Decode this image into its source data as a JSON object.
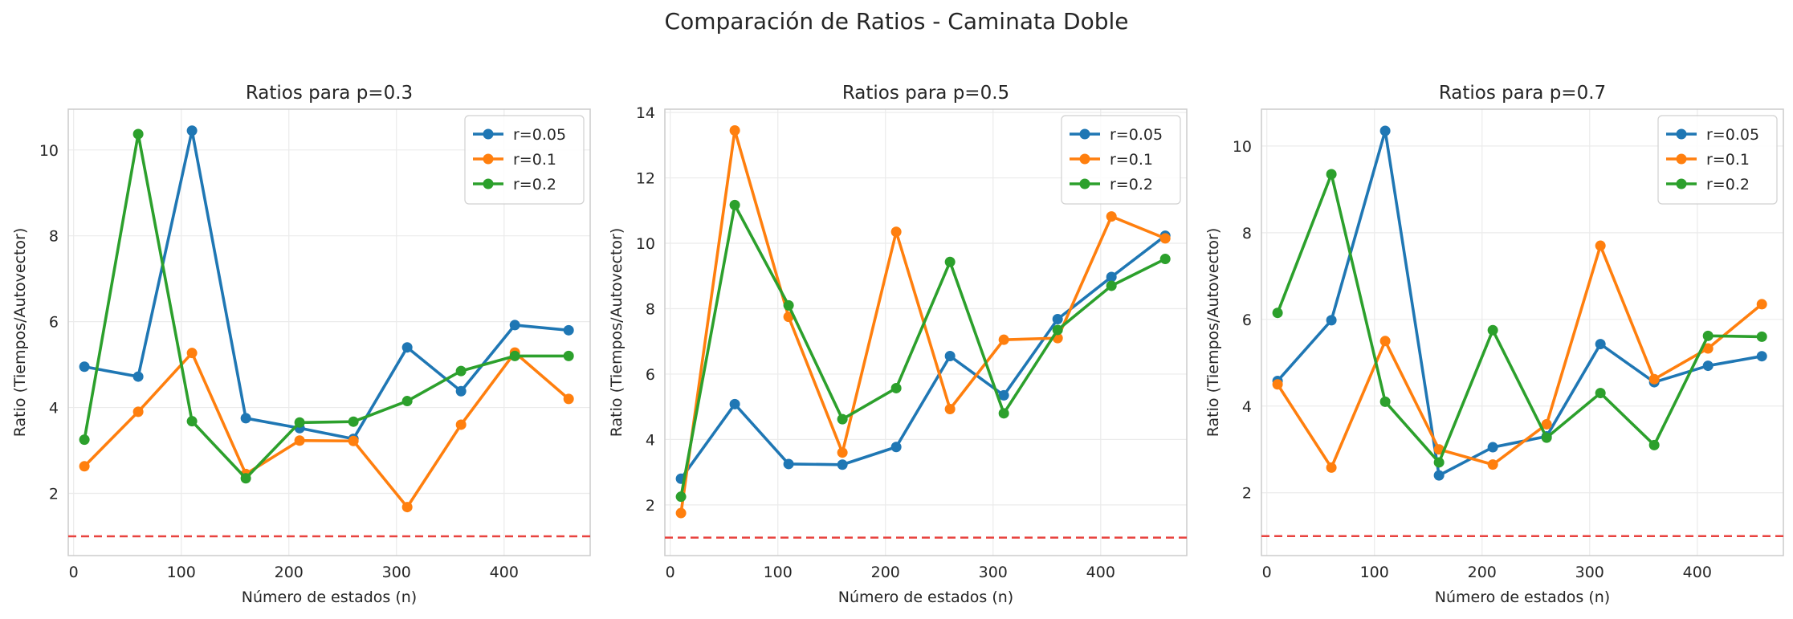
{
  "figure": {
    "suptitle": "Comparación de Ratios - Caminata Doble"
  },
  "colors": {
    "r=0.05": "#1f77b4",
    "r=0.1": "#ff7f0e",
    "r=0.2": "#2ca02c",
    "reference_line": "#e8433f",
    "grid": "#ebebeb",
    "spine": "#cccccc"
  },
  "chart_data": [
    {
      "type": "line",
      "title": "Ratios para p=0.3",
      "xlabel": "Número de estados (n)",
      "ylabel": "Ratio (Tiempos/Autovector)",
      "xlim": [
        -5,
        480
      ],
      "ylim": [
        0.55,
        10.95
      ],
      "xticks": [
        0,
        100,
        200,
        300,
        400
      ],
      "yticks": [
        2,
        4,
        6,
        8,
        10
      ],
      "grid": true,
      "legend_position": "top-right",
      "reference_line_y": 1,
      "x": [
        10,
        60,
        110,
        160,
        210,
        260,
        310,
        360,
        410,
        460
      ],
      "series": [
        {
          "name": "r=0.05",
          "values": [
            4.95,
            4.72,
            10.45,
            3.75,
            3.52,
            3.27,
            5.4,
            4.38,
            5.92,
            5.8
          ]
        },
        {
          "name": "r=0.1",
          "values": [
            2.63,
            3.9,
            5.27,
            2.45,
            3.23,
            3.22,
            1.68,
            3.6,
            5.28,
            4.2
          ]
        },
        {
          "name": "r=0.2",
          "values": [
            3.25,
            10.37,
            3.68,
            2.35,
            3.65,
            3.67,
            4.15,
            4.85,
            5.2,
            5.2
          ]
        }
      ]
    },
    {
      "type": "line",
      "title": "Ratios para p=0.5",
      "xlabel": "Número de estados (n)",
      "ylabel": "Ratio (Tiempos/Autovector)",
      "xlim": [
        -5,
        480
      ],
      "ylim": [
        0.45,
        14.1
      ],
      "xticks": [
        0,
        100,
        200,
        300,
        400
      ],
      "yticks": [
        2,
        4,
        6,
        8,
        10,
        12,
        14
      ],
      "grid": true,
      "legend_position": "top-right",
      "reference_line_y": 1,
      "x": [
        10,
        60,
        110,
        160,
        210,
        260,
        310,
        360,
        410,
        460
      ],
      "series": [
        {
          "name": "r=0.05",
          "values": [
            2.8,
            5.08,
            3.25,
            3.23,
            3.77,
            6.55,
            5.35,
            7.68,
            8.97,
            10.23
          ]
        },
        {
          "name": "r=0.1",
          "values": [
            1.75,
            13.45,
            7.75,
            3.6,
            10.35,
            4.93,
            7.05,
            7.1,
            10.82,
            10.15
          ]
        },
        {
          "name": "r=0.2",
          "values": [
            2.25,
            11.17,
            8.1,
            4.62,
            5.57,
            9.43,
            4.8,
            7.35,
            8.7,
            9.52
          ]
        }
      ]
    },
    {
      "type": "line",
      "title": "Ratios para p=0.7",
      "xlabel": "Número de estados (n)",
      "ylabel": "Ratio (Tiempos/Autovector)",
      "xlim": [
        -5,
        480
      ],
      "ylim": [
        0.55,
        10.85
      ],
      "xticks": [
        0,
        100,
        200,
        300,
        400
      ],
      "yticks": [
        2,
        4,
        6,
        8,
        10
      ],
      "grid": true,
      "legend_position": "top-right",
      "reference_line_y": 1,
      "x": [
        10,
        60,
        110,
        160,
        210,
        260,
        310,
        360,
        410,
        460
      ],
      "series": [
        {
          "name": "r=0.05",
          "values": [
            4.58,
            5.98,
            10.35,
            2.4,
            3.05,
            3.3,
            5.43,
            4.55,
            4.93,
            5.15
          ]
        },
        {
          "name": "r=0.1",
          "values": [
            4.5,
            2.58,
            5.5,
            3.0,
            2.65,
            3.58,
            7.7,
            4.62,
            5.33,
            6.35
          ]
        },
        {
          "name": "r=0.2",
          "values": [
            6.15,
            9.35,
            4.1,
            2.7,
            5.75,
            3.27,
            4.3,
            3.1,
            5.62,
            5.6
          ]
        }
      ]
    }
  ]
}
